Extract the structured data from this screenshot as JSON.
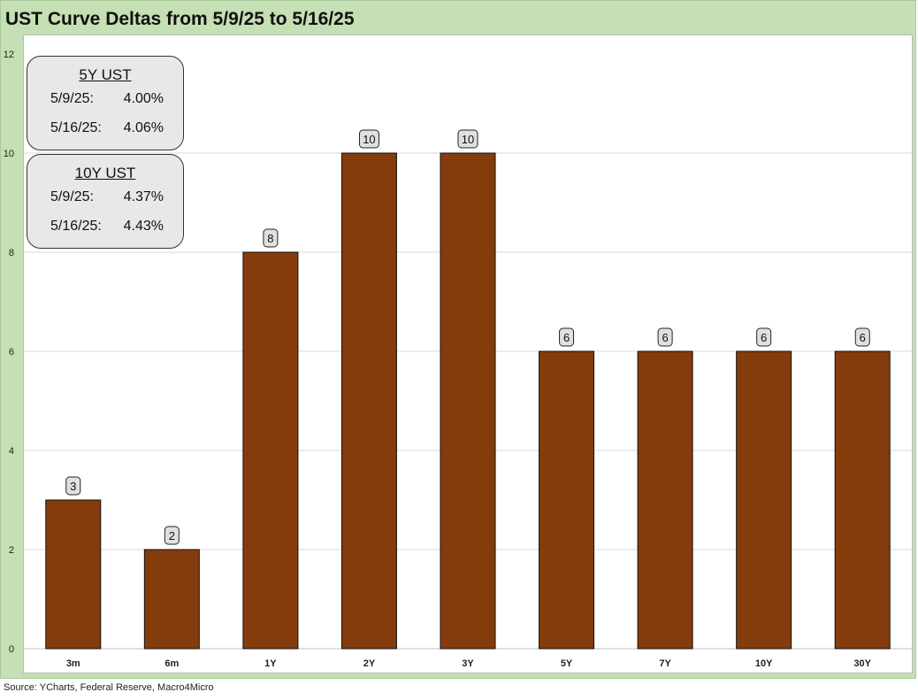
{
  "title": "UST Curve Deltas from 5/9/25 to 5/16/25",
  "source": "Source: YCharts, Federal Reserve, Macro4Micro",
  "colors": {
    "bar": "#843c0c",
    "background": "#c5e0b4",
    "label_box": "#e0e0e0"
  },
  "info_boxes": [
    {
      "title": "5Y UST",
      "rows": [
        {
          "date": "5/9/25:",
          "value": "4.00%"
        },
        {
          "date": "5/16/25:",
          "value": "4.06%"
        }
      ]
    },
    {
      "title": "10Y UST",
      "rows": [
        {
          "date": "5/9/25:",
          "value": "4.37%"
        },
        {
          "date": "5/16/25:",
          "value": "4.43%"
        }
      ]
    }
  ],
  "chart_data": {
    "type": "bar",
    "title": "UST Curve Deltas from 5/9/25 to 5/16/25",
    "categories": [
      "3m",
      "6m",
      "1Y",
      "2Y",
      "3Y",
      "5Y",
      "7Y",
      "10Y",
      "30Y"
    ],
    "values": [
      3,
      2,
      8,
      10,
      10,
      6,
      6,
      6,
      6
    ],
    "ylim": [
      0,
      12
    ],
    "yticks": [
      0,
      2,
      4,
      6,
      8,
      10,
      12
    ],
    "grid": true,
    "data_labels": true
  }
}
